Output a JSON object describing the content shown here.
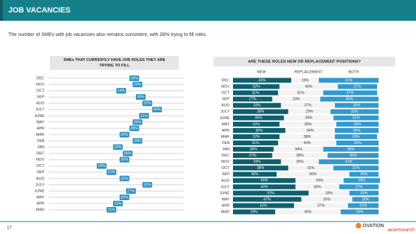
{
  "header": {
    "title": "JOB VACANCIES",
    "subtitle": "The number of SMEs with job vacancies also remains consistent, with 28% trying to fill roles."
  },
  "chart_data": [
    {
      "type": "dot",
      "title": "SMEs THAT CURRENTLY HAVE JOB ROLES THEY ARE TRYING TO FILL",
      "categories": [
        "DEC",
        "NOV",
        "OCT",
        "SEP",
        "AUG",
        "JULY",
        "JUNE",
        "MAY",
        "APR",
        "MAR",
        "FEB",
        "JAN",
        "DEC",
        "NOV",
        "OCT",
        "SEP",
        "AUG",
        "JULY",
        "JUNE",
        "MAY",
        "APR",
        "MAR"
      ],
      "values": [
        28,
        29,
        24,
        30,
        32,
        35,
        31,
        29,
        28,
        25,
        29,
        23,
        26,
        25,
        18,
        21,
        25,
        32,
        27,
        25,
        23,
        21
      ],
      "value_labels": [
        "28%",
        "29%",
        "24%",
        "30%",
        "32%",
        "35%",
        "31%",
        "29%",
        "28%",
        "25%",
        "29%",
        "23%",
        "26%",
        "25%",
        "18%",
        "21%",
        "25%",
        "32%",
        "27%",
        "25%",
        "23%",
        "21%"
      ],
      "color": "#2e8fbf"
    },
    {
      "type": "stacked-bar",
      "title": "ARE THESE ROLES NEW OR REPLACEMENT POSITIONS?",
      "categories": [
        "DEC",
        "NOV",
        "OCT",
        "SEP",
        "AUG",
        "JULY",
        "JUNE",
        "MAY",
        "APR",
        "MAR",
        "FEB",
        "JAN",
        "DEC",
        "NOV",
        "OCT",
        "SEP",
        "AUG",
        "JULY",
        "JUNE",
        "MAY",
        "APR",
        "MAR"
      ],
      "series": [
        {
          "name": "NEW",
          "color": "#0f5f6e",
          "values": [
            40,
            32,
            31,
            27,
            33,
            38,
            35,
            32,
            36,
            32,
            31,
            28,
            27,
            33,
            38,
            30,
            43,
            43,
            52,
            47,
            42,
            29
          ],
          "value_labels": [
            "40%",
            "32%",
            "31%",
            "27%",
            "33%",
            "38%",
            "35%",
            "32%",
            "36%",
            "32%",
            "31%",
            "28%",
            "27%",
            "33%",
            "38%",
            "30%",
            "43%",
            "43%",
            "52%",
            "47%",
            "42%",
            "29%"
          ]
        },
        {
          "name": "REPLACEMENT",
          "color": "#f3f3f3",
          "values": [
            19,
            40,
            31,
            33,
            37,
            29,
            34,
            39,
            34,
            38,
            40,
            34,
            38,
            26,
            31,
            50,
            33,
            30,
            28,
            35,
            37,
            45
          ],
          "value_labels": [
            "19%",
            "40%",
            "31%",
            "33%",
            "37%",
            "29%",
            "34%",
            "39%",
            "34%",
            "38%",
            "40%",
            "34%",
            "38%",
            "26%",
            "31%",
            "50%",
            "33%",
            "30%",
            "28%",
            "35%",
            "37%",
            "45%"
          ]
        },
        {
          "name": "BOTH",
          "color": "#3399cc",
          "values": [
            41,
            27,
            37,
            40,
            30,
            33,
            31,
            29,
            30,
            29,
            29,
            38,
            35,
            41,
            31,
            20,
            25,
            27,
            20,
            18,
            21,
            26
          ],
          "value_labels": [
            "41%",
            "27%",
            "37%",
            "40%",
            "30%",
            "33%",
            "31%",
            "29%",
            "30%",
            "29%",
            "29%",
            "38%",
            "35%",
            "41%",
            "31%",
            "20%",
            "25%",
            "27%",
            "20%",
            "18%",
            "21%",
            "26%"
          ]
        }
      ]
    }
  ],
  "footer": {
    "page": "17",
    "logo": "OVATION",
    "brand": "acaresearch"
  }
}
